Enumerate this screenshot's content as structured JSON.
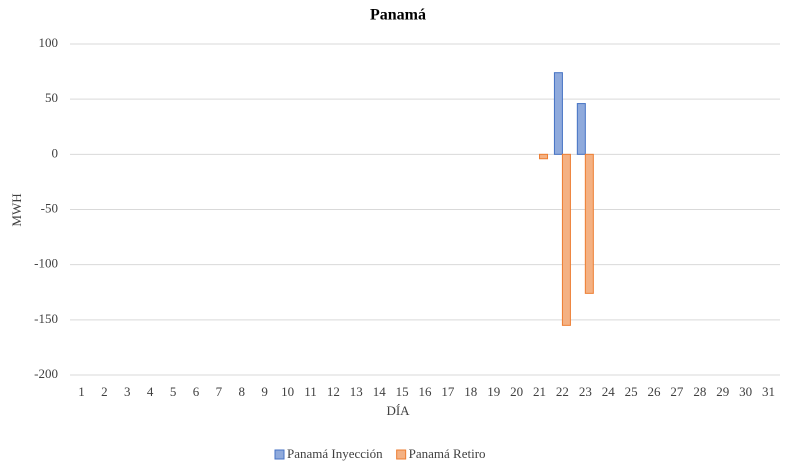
{
  "chart_data": {
    "type": "bar",
    "title": "Panamá",
    "x_label": "DÍA",
    "y_label": "MWH",
    "categories": [
      "1",
      "2",
      "3",
      "4",
      "5",
      "6",
      "7",
      "8",
      "9",
      "10",
      "11",
      "12",
      "13",
      "14",
      "15",
      "16",
      "17",
      "18",
      "19",
      "20",
      "21",
      "22",
      "23",
      "24",
      "25",
      "26",
      "27",
      "28",
      "29",
      "30",
      "31"
    ],
    "series": [
      {
        "name": "Panamá Inyección",
        "color": "#8faadc",
        "edge": "#4472c4",
        "values": [
          0,
          0,
          0,
          0,
          0,
          0,
          0,
          0,
          0,
          0,
          0,
          0,
          0,
          0,
          0,
          0,
          0,
          0,
          0,
          0,
          0,
          74,
          46,
          0,
          0,
          0,
          0,
          0,
          0,
          0,
          0
        ]
      },
      {
        "name": "Panamá Retiro",
        "color": "#f4b183",
        "edge": "#ed7d31",
        "values": [
          0,
          0,
          0,
          0,
          0,
          0,
          0,
          0,
          0,
          0,
          0,
          0,
          0,
          0,
          0,
          0,
          0,
          0,
          0,
          0,
          -4,
          -155,
          -126,
          0,
          0,
          0,
          0,
          0,
          0,
          0,
          0
        ]
      }
    ],
    "ylim": [
      -200,
      100
    ],
    "yticks": [
      -200,
      -150,
      -100,
      -50,
      0,
      50,
      100
    ],
    "grid": true,
    "legend": "bottom"
  }
}
